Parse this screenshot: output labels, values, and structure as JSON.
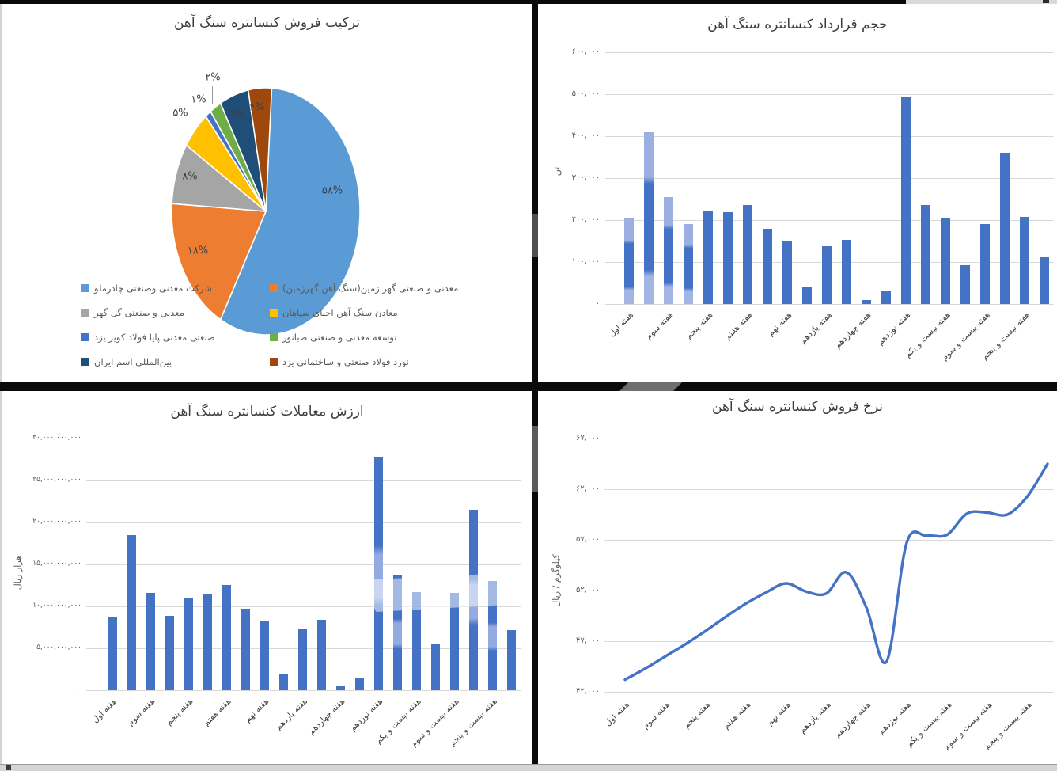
{
  "frame": {
    "background": "#0a0a0a",
    "top_band_gray": "#d9d9d9",
    "bottom_band_gray": "#d5d5d5",
    "left_edge_gray": "#d4d4d4"
  },
  "colors": {
    "bar": "#4472C4",
    "bar_watermarked": "#9bb0e1",
    "line": "#4472C4",
    "grid": "#d9d9d9",
    "axis_text": "#595959",
    "title_text": "#3d3d3d"
  },
  "week_labels": [
    "هفته اول",
    "هفته سوم",
    "هفته پنجم",
    "هفته هفتم",
    "هفته نهم",
    "هفته یازدهم",
    "هفته چهاردهم",
    "هفته نوزدهم",
    "هفته بیست و یکم",
    "هفته بیست و سوم",
    "هفته بیست و پنجم"
  ],
  "chart_data": [
    {
      "id": "sales-mix",
      "type": "pie",
      "title": "ترکیب فروش کنسانتره سنگ آهن",
      "slices": [
        {
          "company": "شرکت معدنی وصنعتی چادرملو",
          "percent": 58,
          "label": "۵۸%",
          "color": "#5B9BD5"
        },
        {
          "company": "معدنی و صنعتی گهر زمین(سنگ آهن گهرزمین)",
          "percent": 18,
          "label": "۱۸%",
          "color": "#ED7D31"
        },
        {
          "company": "معدنی و صنعتی گل گهر",
          "percent": 8,
          "label": "۸%",
          "color": "#A5A5A5"
        },
        {
          "company": "معادن سنگ آهن احیای سپاهان",
          "percent": 5,
          "label": "۵%",
          "color": "#FFC000"
        },
        {
          "company": "صنعتی معدنی پایا فولاد کویر یزد",
          "percent": 1,
          "label": "۱%",
          "color": "#4472C4"
        },
        {
          "company": "توسعه معدنی و صنعتی صبانور",
          "percent": 2,
          "label": "۲%",
          "color": "#70AD47"
        },
        {
          "company": "بین‌المللی اسم ایران",
          "percent": 5,
          "label": "۵%",
          "color": "#1F4E79"
        },
        {
          "company": "نورد فولاد صنعتی و ساختمانی یزد",
          "percent": 4,
          "label": "۴%",
          "color": "#9E480E"
        }
      ],
      "legend_position": "bottom",
      "legend_columns": {
        "right": [
          0,
          2,
          4,
          6
        ],
        "left": [
          1,
          3,
          5,
          7
        ]
      }
    },
    {
      "id": "contract-volume",
      "type": "bar",
      "title": "حجم قرارداد کنسانتره سنگ آهن",
      "ylabel": "تن",
      "yticks": [
        "۶۰۰,۰۰۰",
        "۵۰۰,۰۰۰",
        "۴۰۰,۰۰۰",
        "۳۰۰,۰۰۰",
        "۲۰۰,۰۰۰",
        "۱۰۰,۰۰۰",
        "۰"
      ],
      "ylim": [
        0,
        600000
      ],
      "grid": true,
      "categories": [
        "هفته اول",
        "هفته سوم",
        "هفته پنجم",
        "هفته هفتم",
        "هفته نهم",
        "هفته یازدهم",
        "هفته چهاردهم",
        "هفته نوزدهم",
        "هفته بیست و یکم",
        "هفته بیست و سوم",
        "هفته بیست و پنجم"
      ],
      "values": [
        205000,
        410000,
        255000,
        190000,
        220000,
        218000,
        235000,
        180000,
        150000,
        40000,
        138000,
        152000,
        10000,
        32000,
        495000,
        235000,
        205000,
        93000,
        190000,
        360000,
        208000,
        112000
      ]
    },
    {
      "id": "trade-value",
      "type": "bar",
      "title": "ارزش معاملات کنسانتره سنگ آهن",
      "ylabel": "هزار ریال",
      "yticks": [
        "۳۰,۰۰۰,۰۰۰,۰۰۰",
        "۲۵,۰۰۰,۰۰۰,۰۰۰",
        "۲۰,۰۰۰,۰۰۰,۰۰۰",
        "۱۵,۰۰۰,۰۰۰,۰۰۰",
        "۱۰,۰۰۰,۰۰۰,۰۰۰",
        "۵,۰۰۰,۰۰۰,۰۰۰",
        "۰"
      ],
      "ylim": [
        0,
        30000000000
      ],
      "grid": true,
      "categories": [
        "هفته اول",
        "هفته سوم",
        "هفته پنجم",
        "هفته هفتم",
        "هفته نهم",
        "هفته یازدهم",
        "هفته چهاردهم",
        "هفته نوزدهم",
        "هفته بیست و یکم",
        "هفته بیست و سوم",
        "هفته بیست و پنجم"
      ],
      "values": [
        8800000000,
        18500000000,
        11600000000,
        8900000000,
        11000000000,
        11400000000,
        12500000000,
        9700000000,
        8200000000,
        2000000000,
        7400000000,
        8400000000,
        500000000,
        1500000000,
        27800000000,
        13800000000,
        11700000000,
        5600000000,
        11600000000,
        21500000000,
        13000000000,
        7200000000
      ]
    },
    {
      "id": "sale-rate",
      "type": "line",
      "title": "نرخ فروش کنسانتره سنگ آهن",
      "ylabel": "کیلوگرم / ریال",
      "yticks": [
        "۶۷,۰۰۰",
        "۶۲,۰۰۰",
        "۵۷,۰۰۰",
        "۵۲,۰۰۰",
        "۴۷,۰۰۰",
        "۴۲,۰۰۰"
      ],
      "ylim": [
        42000,
        67000
      ],
      "grid": true,
      "categories": [
        "هفته اول",
        "هفته سوم",
        "هفته پنجم",
        "هفته هفتم",
        "هفته نهم",
        "هفته یازدهم",
        "هفته چهاردهم",
        "هفته نوزدهم",
        "هفته بیست و یکم",
        "هفته بیست و سوم",
        "هفته بیست و پنجم"
      ],
      "values": [
        43200,
        44300,
        45500,
        46700,
        48000,
        49400,
        50700,
        51800,
        52700,
        51900,
        51700,
        53800,
        50300,
        45000,
        56700,
        57400,
        57500,
        59600,
        59700,
        59500,
        61300,
        64500
      ]
    }
  ]
}
